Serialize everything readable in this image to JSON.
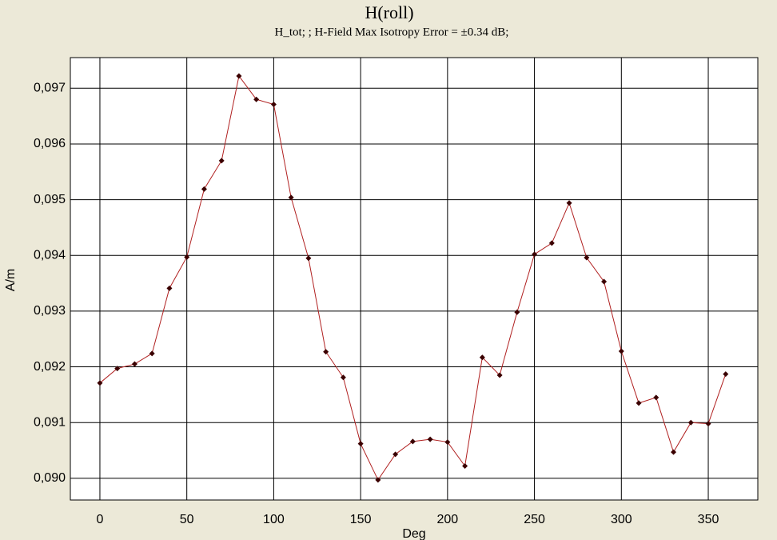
{
  "chart_data": {
    "type": "line",
    "title": "H(roll)",
    "subtitle": "H_tot; ;  H-Field Max Isotropy Error = ±0.34 dB;",
    "x_label": "Deg",
    "y_label": "A/m",
    "x": [
      0,
      10,
      20,
      30,
      40,
      50,
      60,
      70,
      80,
      90,
      100,
      110,
      120,
      130,
      140,
      150,
      160,
      170,
      180,
      190,
      200,
      210,
      220,
      230,
      240,
      250,
      260,
      270,
      280,
      290,
      300,
      310,
      320,
      330,
      340,
      350,
      360
    ],
    "series": [
      {
        "name": "H_tot",
        "color": "#b02020",
        "marker_color": "#3a0000",
        "values": [
          0.09171,
          0.09197,
          0.09205,
          0.09224,
          0.09341,
          0.09397,
          0.09519,
          0.0957,
          0.09722,
          0.0968,
          0.09671,
          0.09504,
          0.09395,
          0.09227,
          0.09181,
          0.09062,
          0.08997,
          0.09043,
          0.09066,
          0.0907,
          0.09065,
          0.09022,
          0.09217,
          0.09185,
          0.09298,
          0.09402,
          0.09422,
          0.09494,
          0.09396,
          0.09353,
          0.09228,
          0.09135,
          0.09145,
          0.09047,
          0.091,
          0.09098,
          0.09187
        ]
      }
    ],
    "xlim": [
      -17,
      378.5
    ],
    "ylim": [
      0.08961,
      0.09755
    ],
    "xticks": [
      0,
      50,
      100,
      150,
      200,
      250,
      300,
      350
    ],
    "yticks": [
      {
        "value": 0.09,
        "label": "0,090"
      },
      {
        "value": 0.091,
        "label": "0,091"
      },
      {
        "value": 0.092,
        "label": "0,092"
      },
      {
        "value": 0.093,
        "label": "0,093"
      },
      {
        "value": 0.094,
        "label": "0,094"
      },
      {
        "value": 0.095,
        "label": "0,095"
      },
      {
        "value": 0.096,
        "label": "0,096"
      },
      {
        "value": 0.097,
        "label": "0,097"
      }
    ],
    "grid": true
  }
}
